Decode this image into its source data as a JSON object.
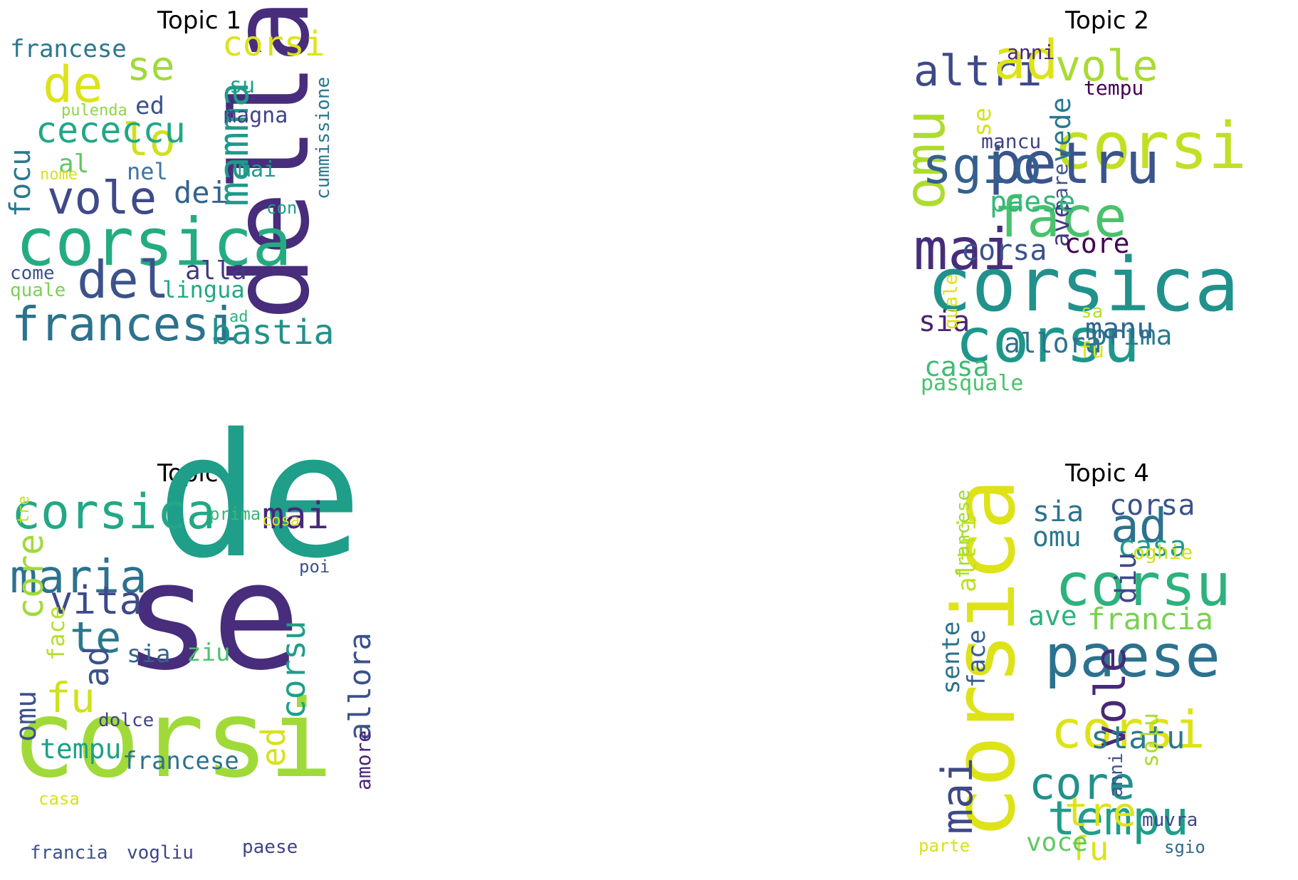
{
  "chart_data": [
    {
      "type": "wordcloud",
      "title": "Topic 1",
      "words": [
        {
          "text": "della",
          "color": "#472d7b"
        },
        {
          "text": "corsica",
          "color": "#25ab82"
        },
        {
          "text": "francesi",
          "color": "#2c728e"
        },
        {
          "text": "del",
          "color": "#3b528b"
        },
        {
          "text": "vole",
          "color": "#3e4a89"
        },
        {
          "text": "bastia",
          "color": "#21918c"
        },
        {
          "text": "mamma",
          "color": "#1f9a8a"
        },
        {
          "text": "de",
          "color": "#dde318"
        },
        {
          "text": "corsi",
          "color": "#dde318"
        },
        {
          "text": "se",
          "color": "#a0da39"
        },
        {
          "text": "lo",
          "color": "#d0e11c"
        },
        {
          "text": "focu",
          "color": "#2a788e"
        },
        {
          "text": "cececcu",
          "color": "#22a785"
        },
        {
          "text": "francese",
          "color": "#2a768e"
        },
        {
          "text": "dei",
          "color": "#33638d"
        },
        {
          "text": "alla",
          "color": "#453781"
        },
        {
          "text": "lingua",
          "color": "#22a884"
        },
        {
          "text": "ed",
          "color": "#3b528b"
        },
        {
          "text": "nel",
          "color": "#3e74a3"
        },
        {
          "text": "al",
          "color": "#5ec962"
        },
        {
          "text": "su",
          "color": "#1fa187"
        },
        {
          "text": "magna",
          "color": "#414487"
        },
        {
          "text": "mai",
          "color": "#1f9a8a"
        },
        {
          "text": "con",
          "color": "#1f9e89"
        },
        {
          "text": "cummissione",
          "color": "#2a788e"
        },
        {
          "text": "pulenda",
          "color": "#8fd744"
        },
        {
          "text": "nome",
          "color": "#d8e219"
        },
        {
          "text": "come",
          "color": "#3b528b"
        },
        {
          "text": "quale",
          "color": "#7ad151"
        },
        {
          "text": "ad",
          "color": "#2db27d"
        }
      ]
    },
    {
      "type": "wordcloud",
      "title": "Topic 2",
      "words": [
        {
          "text": "corsica",
          "color": "#21918c"
        },
        {
          "text": "corsu",
          "color": "#1f968b"
        },
        {
          "text": "corsi",
          "color": "#c2df23"
        },
        {
          "text": "petru",
          "color": "#3a548c"
        },
        {
          "text": "face",
          "color": "#4ac16d"
        },
        {
          "text": "mai",
          "color": "#472d7b"
        },
        {
          "text": "omu",
          "color": "#addc30"
        },
        {
          "text": "sgio",
          "color": "#355f8d"
        },
        {
          "text": "altri",
          "color": "#3e4989"
        },
        {
          "text": "ad",
          "color": "#dde318"
        },
        {
          "text": "vole",
          "color": "#a8db34"
        },
        {
          "text": "vede",
          "color": "#2a788e"
        },
        {
          "text": "pare",
          "color": "#3b528b"
        },
        {
          "text": "ave",
          "color": "#453882"
        },
        {
          "text": "paese",
          "color": "#35b779"
        },
        {
          "text": "corsa",
          "color": "#3b528b"
        },
        {
          "text": "core",
          "color": "#440154"
        },
        {
          "text": "sia",
          "color": "#482475"
        },
        {
          "text": "casa",
          "color": "#3fbc73"
        },
        {
          "text": "allora",
          "color": "#2c728e"
        },
        {
          "text": "prima",
          "color": "#2a788e"
        },
        {
          "text": "manu",
          "color": "#31688e"
        },
        {
          "text": "pasquale",
          "color": "#4ac16d"
        },
        {
          "text": "fu",
          "color": "#dde318"
        },
        {
          "text": "se",
          "color": "#d8e219"
        },
        {
          "text": "mancu",
          "color": "#414487"
        },
        {
          "text": "anni",
          "color": "#482878"
        },
        {
          "text": "tempu",
          "color": "#440154"
        },
        {
          "text": "quale",
          "color": "#dde318"
        },
        {
          "text": "sa",
          "color": "#b5de2b"
        }
      ]
    },
    {
      "type": "wordcloud",
      "title": "Topic 3",
      "words": [
        {
          "text": "de",
          "color": "#1f9e89"
        },
        {
          "text": "se",
          "color": "#472d7b"
        },
        {
          "text": "corsi",
          "color": "#a0da39"
        },
        {
          "text": "corsica",
          "color": "#22a884"
        },
        {
          "text": "maria",
          "color": "#2c728e"
        },
        {
          "text": "mai",
          "color": "#482878"
        },
        {
          "text": "vita",
          "color": "#3e4989"
        },
        {
          "text": "te",
          "color": "#2a788e"
        },
        {
          "text": "ad",
          "color": "#3b528b"
        },
        {
          "text": "core",
          "color": "#a0da39"
        },
        {
          "text": "corsu",
          "color": "#1f9e89"
        },
        {
          "text": "allora",
          "color": "#3b528b"
        },
        {
          "text": "amore",
          "color": "#482475"
        },
        {
          "text": "fu",
          "color": "#d0e11c"
        },
        {
          "text": "omu",
          "color": "#3b528b"
        },
        {
          "text": "tempu",
          "color": "#1f9e89"
        },
        {
          "text": "francese",
          "color": "#2c728e"
        },
        {
          "text": "ed",
          "color": "#d8e219"
        },
        {
          "text": "face",
          "color": "#b5de2b"
        },
        {
          "text": "sia",
          "color": "#33638d"
        },
        {
          "text": "ziu",
          "color": "#4ac16d"
        },
        {
          "text": "dolce",
          "color": "#414487"
        },
        {
          "text": "prima",
          "color": "#35b779"
        },
        {
          "text": "tre",
          "color": "#c2df23"
        },
        {
          "text": "cosa",
          "color": "#d8e219"
        },
        {
          "text": "poi",
          "color": "#3b528b"
        },
        {
          "text": "casa",
          "color": "#d8e219"
        },
        {
          "text": "francia",
          "color": "#3b528b"
        },
        {
          "text": "vogliu",
          "color": "#414487"
        },
        {
          "text": "paese",
          "color": "#414487"
        }
      ]
    },
    {
      "type": "wordcloud",
      "title": "Topic 4",
      "words": [
        {
          "text": "corsica",
          "color": "#dde318"
        },
        {
          "text": "corsu",
          "color": "#2db27d"
        },
        {
          "text": "paese",
          "color": "#2c728e"
        },
        {
          "text": "corsi",
          "color": "#dde318"
        },
        {
          "text": "core",
          "color": "#21918c"
        },
        {
          "text": "tempu",
          "color": "#1f9e89"
        },
        {
          "text": "mai",
          "color": "#3e4989"
        },
        {
          "text": "vole",
          "color": "#482878"
        },
        {
          "text": "ad",
          "color": "#2c728e"
        },
        {
          "text": "francia",
          "color": "#7ad151"
        },
        {
          "text": "statu",
          "color": "#2a788e"
        },
        {
          "text": "tre",
          "color": "#dde318"
        },
        {
          "text": "fu",
          "color": "#dde318"
        },
        {
          "text": "voce",
          "color": "#5ec962"
        },
        {
          "text": "sia",
          "color": "#2c728e"
        },
        {
          "text": "omu",
          "color": "#2a788e"
        },
        {
          "text": "corsa",
          "color": "#3b528b"
        },
        {
          "text": "casa",
          "color": "#1f9a8a"
        },
        {
          "text": "diu",
          "color": "#3e4989"
        },
        {
          "text": "ave",
          "color": "#2db27d"
        },
        {
          "text": "altri",
          "color": "#c2df23"
        },
        {
          "text": "sente",
          "color": "#2c728e"
        },
        {
          "text": "face",
          "color": "#355f8d"
        },
        {
          "text": "francese",
          "color": "#a0da39"
        },
        {
          "text": "oghie",
          "color": "#d0e11c"
        },
        {
          "text": "solu",
          "color": "#addc30"
        },
        {
          "text": "anni",
          "color": "#3b528b"
        },
        {
          "text": "muvra",
          "color": "#3e4989"
        },
        {
          "text": "sgio",
          "color": "#31688e"
        },
        {
          "text": "parte",
          "color": "#d8e219"
        }
      ]
    }
  ]
}
